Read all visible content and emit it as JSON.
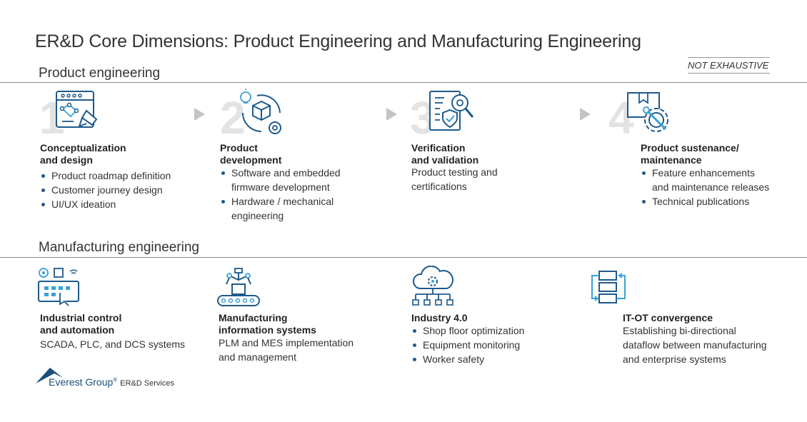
{
  "title": "ER&D Core Dimensions: Product Engineering and Manufacturing Engineering",
  "not_exhaustive": "NOT EXHAUSTIVE",
  "product_section": {
    "label": "Product engineering",
    "steps": [
      {
        "number": "1",
        "icon": "design-board-icon",
        "title": [
          "Conceptualization",
          "and design"
        ],
        "bullets": [
          [
            "Product roadmap definition"
          ],
          [
            "Customer journey design"
          ],
          [
            "UI/UX ideation"
          ]
        ]
      },
      {
        "number": "2",
        "icon": "development-cycle-icon",
        "title": [
          "Product",
          "development"
        ],
        "bullets": [
          [
            "Software and embedded",
            "firmware development"
          ],
          [
            "Hardware / mechanical",
            "engineering"
          ]
        ]
      },
      {
        "number": "3",
        "icon": "verification-checklist-icon",
        "title": [
          "Verification",
          "and validation"
        ],
        "desc": [
          "Product testing and",
          "certifications"
        ]
      },
      {
        "number": "4",
        "icon": "maintenance-gear-icon",
        "title": [
          "Product sustenance/",
          "maintenance"
        ],
        "bullets": [
          [
            "Feature enhancements",
            "and maintenance releases"
          ],
          [
            "Technical publications"
          ]
        ]
      }
    ]
  },
  "manufacturing_section": {
    "label": "Manufacturing engineering",
    "items": [
      {
        "icon": "control-panel-icon",
        "title": [
          "Industrial control",
          "and automation"
        ],
        "desc": [
          "SCADA, PLC, and DCS systems"
        ]
      },
      {
        "icon": "robotic-arm-conveyor-icon",
        "title": [
          "Manufacturing",
          "information systems"
        ],
        "desc": [
          "PLM and MES implementation",
          "and management"
        ]
      },
      {
        "icon": "cloud-network-icon",
        "title": [
          "Industry 4.0"
        ],
        "bullets": [
          [
            "Shop floor optimization"
          ],
          [
            "Equipment monitoring"
          ],
          [
            "Worker safety"
          ]
        ]
      },
      {
        "icon": "convergence-flow-icon",
        "title": [
          "IT-OT convergence"
        ],
        "desc": [
          "Establishing bi-directional",
          "dataflow between manufacturing",
          "and enterprise systems"
        ]
      }
    ]
  },
  "footer": {
    "brand": "Everest Group",
    "registered": "®",
    "sub": "ER&D Services"
  },
  "colors": {
    "icon_blue": "#1d5a8c",
    "icon_light": "#3aa0d8",
    "rule": "#8a8a8a",
    "number_grey": "#e3e3e3"
  }
}
